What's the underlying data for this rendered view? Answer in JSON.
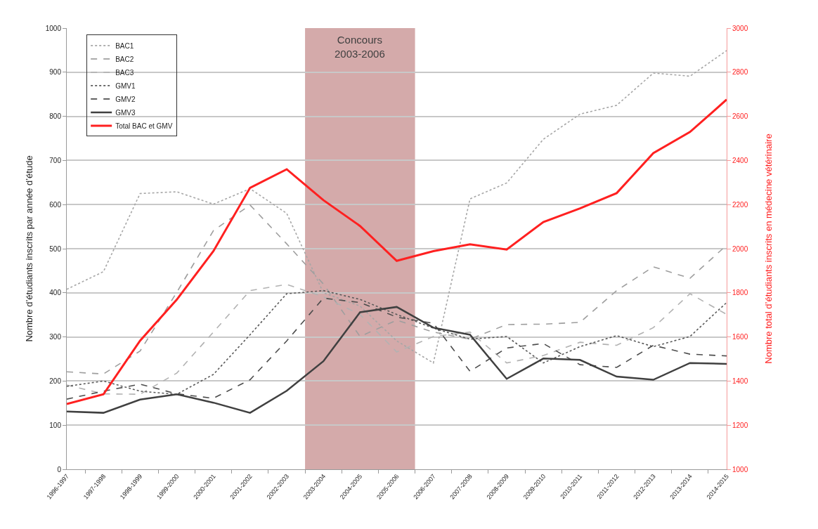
{
  "chart_data": {
    "type": "line",
    "categories": [
      "1996-1997",
      "1997-1998",
      "1998-1999",
      "1999-2000",
      "2000-2001",
      "2001-2002",
      "2002-2003",
      "2003-2004",
      "2004-2005",
      "2005-2006",
      "2006-2007",
      "2007-2008",
      "2008-2009",
      "2009-2010",
      "2010-2011",
      "2011-2012",
      "2012-2013",
      "2013-2014",
      "2014-2015"
    ],
    "series": [
      {
        "name": "BAC1",
        "color": "#a6a6a6",
        "line_style": "dotted",
        "values": [
          408,
          448,
          625,
          629,
          601,
          636,
          580,
          400,
          370,
          291,
          241,
          613,
          649,
          748,
          805,
          825,
          898,
          891,
          949
        ]
      },
      {
        "name": "BAC2",
        "color": "#9e9e9e",
        "line_style": "dashed",
        "values": [
          221,
          216,
          268,
          401,
          541,
          599,
          511,
          420,
          301,
          338,
          311,
          295,
          328,
          329,
          333,
          405,
          459,
          433,
          508
        ]
      },
      {
        "name": "BAC3",
        "color": "#b2b2b2",
        "line_style": "dashed",
        "values": [
          191,
          171,
          170,
          218,
          311,
          405,
          419,
          391,
          351,
          266,
          301,
          311,
          241,
          258,
          288,
          281,
          321,
          398,
          351
        ]
      },
      {
        "name": "GMV1",
        "color": "#595959",
        "line_style": "dotted",
        "values": [
          188,
          200,
          177,
          170,
          215,
          305,
          398,
          405,
          385,
          351,
          320,
          295,
          301,
          241,
          278,
          303,
          278,
          301,
          378
        ]
      },
      {
        "name": "GMV2",
        "color": "#4d4d4d",
        "line_style": "dashed",
        "values": [
          159,
          177,
          193,
          171,
          161,
          203,
          291,
          388,
          378,
          345,
          331,
          222,
          275,
          285,
          237,
          231,
          281,
          261,
          257
        ]
      },
      {
        "name": "GMV3",
        "color": "#404040",
        "line_style": "solid",
        "values": [
          131,
          128,
          158,
          170,
          151,
          128,
          178,
          245,
          356,
          368,
          321,
          305,
          205,
          251,
          248,
          210,
          203,
          241,
          239
        ]
      },
      {
        "name": "Total BAC et GMV",
        "color": "#ff2020",
        "line_style": "solid",
        "axis": "y2",
        "values": [
          1296,
          1340,
          1583,
          1769,
          1989,
          2276,
          2360,
          2220,
          2103,
          1945,
          1989,
          2020,
          1996,
          2121,
          2183,
          2252,
          2433,
          2529,
          2676
        ]
      }
    ],
    "ylabel": "Nombre d’étudiants inscrits par année d’étude",
    "y2label": "Nombre total d’étudiants inscrits en médecine vétérinaire",
    "ylim": [
      0,
      1000
    ],
    "yticks": [
      0,
      100,
      200,
      300,
      400,
      500,
      600,
      700,
      800,
      900,
      1000
    ],
    "y2lim": [
      1000,
      3000
    ],
    "y2ticks": [
      1000,
      1200,
      1400,
      1600,
      1800,
      2000,
      2200,
      2400,
      2600,
      2800,
      3000
    ],
    "bands": [
      {
        "axis": "x",
        "from": "2003-2004",
        "to": "2005-2006",
        "label": "Concours\n2003-2006",
        "color": "#d4aaaa"
      }
    ],
    "grid": "y",
    "legend": "top left",
    "marker": "none"
  }
}
